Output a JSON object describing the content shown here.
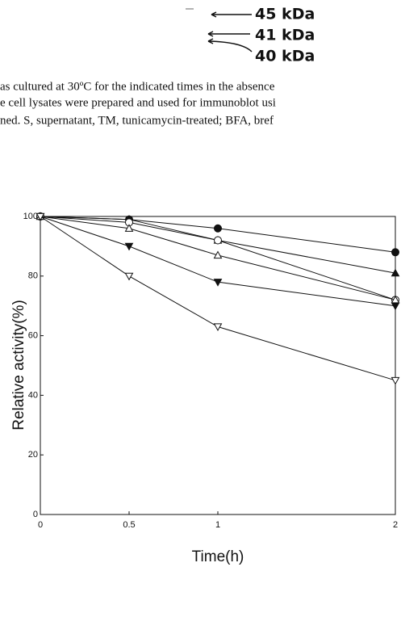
{
  "blot_labels": [
    "45 kDa",
    "41 kDa",
    "40 kDa"
  ],
  "caption_lines": [
    "as cultured at 30ºC for the indicated times in the absence",
    "e cell lysates were prepared and used for immunoblot usi",
    "ned. S, supernatant, TM, tunicamycin-treated; BFA, bref"
  ],
  "chart_data": {
    "type": "line",
    "x_label": "Time(h)",
    "y_label": "Relative activity(%)",
    "x": [
      0,
      0.5,
      1,
      2
    ],
    "xlim": [
      0,
      2
    ],
    "xticks": [
      0,
      0.5,
      1,
      2
    ],
    "ylim": [
      0,
      100
    ],
    "yticks": [
      0,
      20,
      40,
      60,
      80,
      100
    ],
    "series": [
      {
        "color": "#111111",
        "marker": "filled-circle",
        "values": [
          100,
          99,
          96,
          88
        ]
      },
      {
        "color": "#111111",
        "marker": "filled-triangle",
        "values": [
          100,
          99,
          92,
          81
        ]
      },
      {
        "color": "#111111",
        "marker": "open-circle",
        "values": [
          100,
          98,
          92,
          72
        ]
      },
      {
        "color": "#111111",
        "marker": "open-triangle",
        "values": [
          100,
          96,
          87,
          72
        ]
      },
      {
        "color": "#111111",
        "marker": "filled-down-triangle",
        "values": [
          100,
          90,
          78,
          70
        ]
      },
      {
        "color": "#111111",
        "marker": "open-down-triangle",
        "values": [
          100,
          80,
          63,
          45
        ]
      }
    ]
  }
}
